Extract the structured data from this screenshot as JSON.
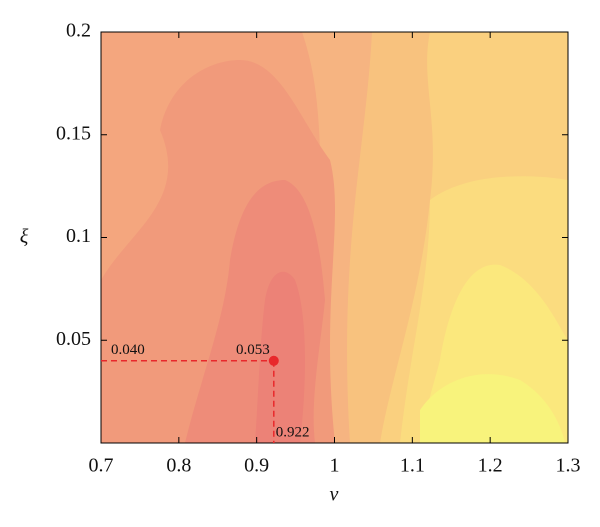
{
  "chart_data": {
    "type": "contour",
    "x_label": "ν",
    "y_label": "ξ",
    "xlim": [
      0.7,
      1.3
    ],
    "xticks": [
      0.7,
      0.8,
      0.9,
      1,
      1.1,
      1.2,
      1.3
    ],
    "ylim": [
      0,
      0.2
    ],
    "yticks": [
      0.05,
      0.1,
      0.15,
      0.2
    ],
    "marker": {
      "x": 0.922,
      "y": 0.04,
      "y_label": "0.040",
      "value": 0.053,
      "color": "#e8282b"
    }
  }
}
